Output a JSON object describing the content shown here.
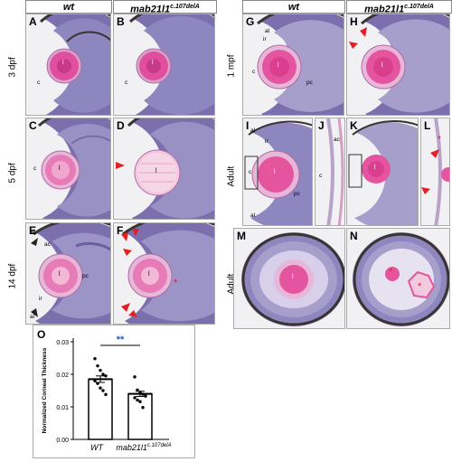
{
  "headers": {
    "left_wt": "wt",
    "left_mut_base": "mab21l1",
    "left_mut_sup": "c.107delA",
    "right_wt": "wt",
    "right_mut_base": "mab21l1",
    "right_mut_sup": "c.107delA"
  },
  "row_labels": {
    "r1": "3 dpf",
    "r2": "5 dpf",
    "r3": "14 dpf",
    "g_row": "1 mpf",
    "i_row": "Adult",
    "m_row": "Adult"
  },
  "panels": {
    "A": "A",
    "B": "B",
    "C": "C",
    "D": "D",
    "E": "E",
    "F": "F",
    "G": "G",
    "H": "H",
    "I": "I",
    "J": "J",
    "K": "K",
    "L": "L",
    "M": "M",
    "N": "N"
  },
  "annotations": {
    "lens": "l",
    "cornea": "c",
    "annular_ligament": "al",
    "iris": "ir",
    "anterior_chamber": "ac",
    "posterior_chamber": "pc",
    "asterisk": "*"
  },
  "chart_panel_letter": "O",
  "colors": {
    "retina_purple": "#7b6fae",
    "lens_pink": "#e04f9e",
    "pigment": "#3b3330",
    "tissue_bg": "#f1f1f3",
    "arrow_red": "#e31e24",
    "sig_blue": "#1f5fbf"
  },
  "chart_data": {
    "type": "bar",
    "categories": [
      "WT",
      "mab21l1 c.107delA"
    ],
    "category_labels": {
      "wt": "WT",
      "mut_base": "mab21l1",
      "mut_sup": "c.107delA"
    },
    "values": [
      0.0185,
      0.014
    ],
    "errors": [
      0.001,
      0.0008
    ],
    "points": [
      [
        0.0248,
        0.0226,
        0.0212,
        0.02,
        0.0195,
        0.018,
        0.0172,
        0.0158,
        0.015,
        0.0138
      ],
      [
        0.0192,
        0.0152,
        0.0144,
        0.0139,
        0.0133,
        0.0128,
        0.0121,
        0.0116,
        0.0098
      ]
    ],
    "ylabel": "Normalized Corneal Thickness",
    "yticks": [
      "0.00",
      "0.01",
      "0.02",
      "0.03"
    ],
    "ylim": [
      0,
      0.03
    ],
    "significance": "**",
    "grid": false
  }
}
